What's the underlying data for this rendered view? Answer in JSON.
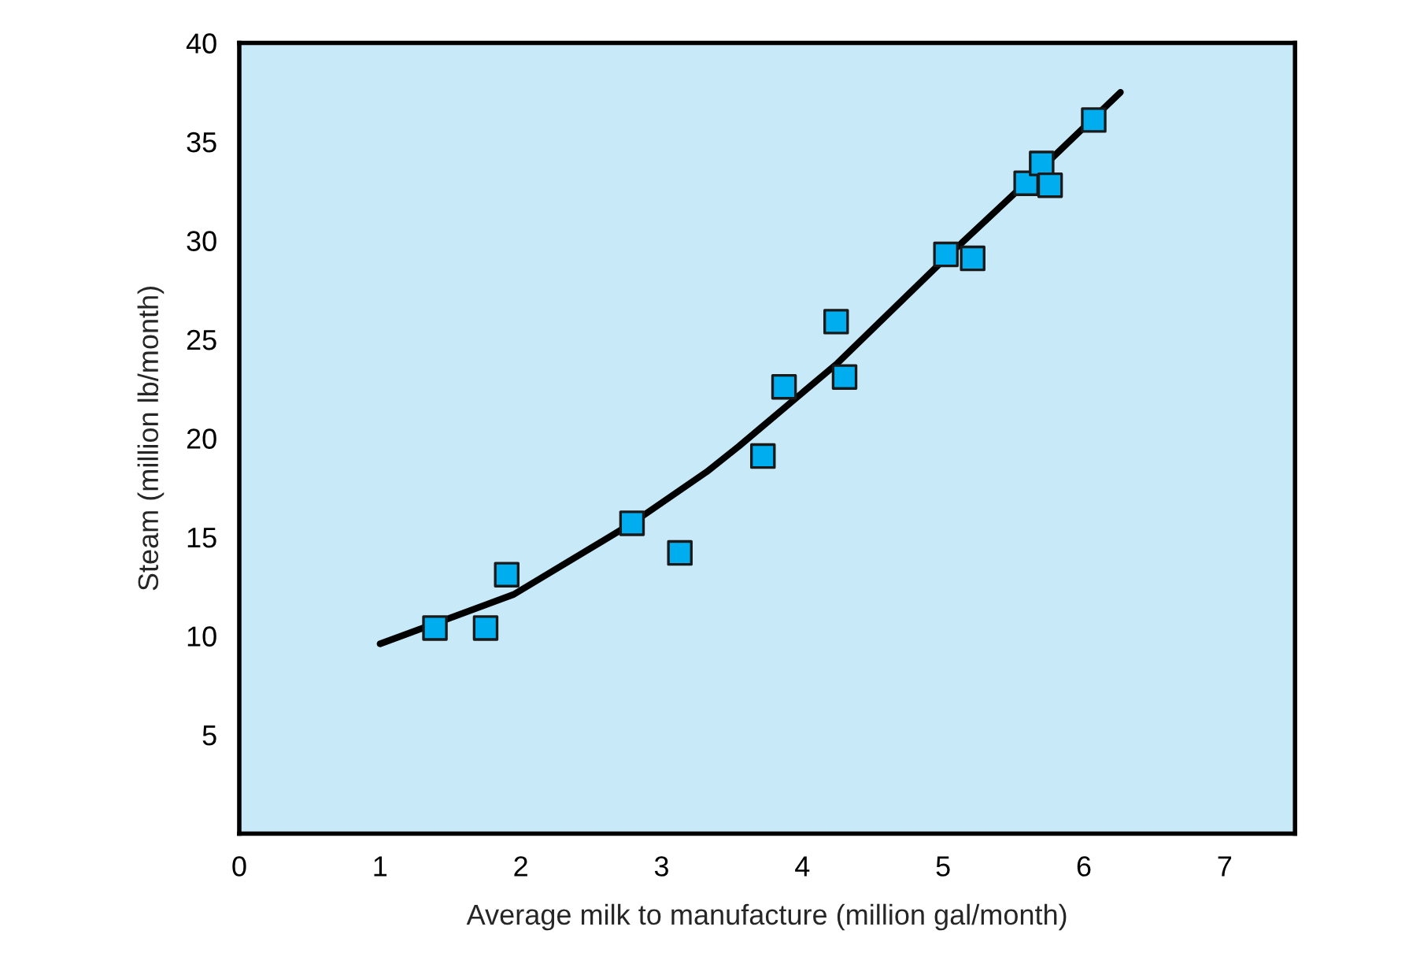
{
  "chart_data": {
    "type": "scatter",
    "xlabel": "Average milk to manufacture (million gal/month)",
    "ylabel": "Steam (million lb/month)",
    "xlim": [
      0,
      7.5
    ],
    "ylim": [
      0,
      40
    ],
    "xticks": [
      0,
      1,
      2,
      3,
      4,
      5,
      6,
      7
    ],
    "yticks": [
      5,
      10,
      15,
      20,
      25,
      30,
      35,
      40
    ],
    "grid": false,
    "series": [
      {
        "color": "#00aeef",
        "marker": "square",
        "x": [
          1.39,
          1.75,
          1.9,
          2.79,
          3.13,
          3.72,
          3.87,
          4.24,
          4.3,
          5.02,
          5.21,
          5.59,
          5.7,
          5.76,
          6.07
        ],
        "values": [
          10.4,
          10.4,
          13.1,
          15.7,
          14.2,
          19.1,
          22.6,
          25.9,
          23.1,
          29.3,
          29.1,
          32.9,
          33.9,
          32.8,
          36.1
        ]
      },
      {
        "type": "line",
        "marker": "none",
        "color": "#000000",
        "x": [
          1.0,
          1.95,
          2.79,
          3.32,
          3.55,
          4.25,
          5.03,
          5.66,
          6.26
        ],
        "values": [
          9.6,
          12.1,
          15.7,
          18.3,
          19.6,
          23.8,
          29.2,
          33.4,
          37.5
        ]
      }
    ]
  }
}
